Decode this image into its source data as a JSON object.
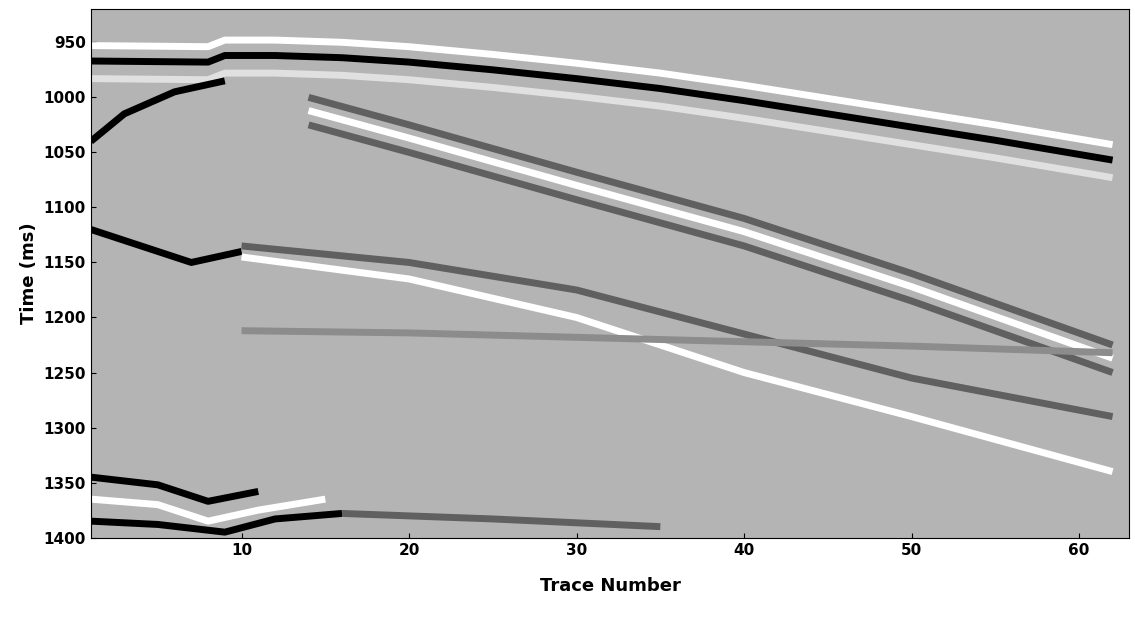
{
  "chart_data": {
    "type": "line",
    "x_label": "Trace Number",
    "y_label": "Time (ms)",
    "xlim": [
      1,
      63
    ],
    "xticks": [
      10,
      20,
      30,
      40,
      50,
      60
    ],
    "ylim": [
      1400,
      920
    ],
    "yticks": [
      950,
      1000,
      1050,
      1100,
      1150,
      1200,
      1250,
      1300,
      1350,
      1400
    ],
    "grid": false,
    "series": [
      {
        "color": "#ffffff",
        "x": [
          1,
          8,
          9,
          12,
          16,
          20,
          25,
          30,
          35,
          40,
          45,
          50,
          55,
          62
        ],
        "values": [
          953,
          954,
          948,
          948,
          950,
          954,
          961,
          969,
          978,
          989,
          1001,
          1013,
          1025,
          1043
        ]
      },
      {
        "color": "#000000",
        "x": [
          1,
          8,
          9,
          12,
          16,
          20,
          25,
          30,
          35,
          40,
          45,
          50,
          55,
          62
        ],
        "values": [
          967,
          968,
          962,
          962,
          964,
          968,
          975,
          983,
          992,
          1003,
          1015,
          1027,
          1039,
          1057
        ]
      },
      {
        "color": "#e0e0e0",
        "x": [
          1,
          8,
          9,
          12,
          16,
          20,
          25,
          30,
          35,
          40,
          45,
          50,
          55,
          62
        ],
        "values": [
          983,
          984,
          978,
          978,
          980,
          984,
          991,
          999,
          1008,
          1019,
          1031,
          1043,
          1055,
          1073
        ]
      },
      {
        "color": "#000000",
        "x": [
          1,
          3,
          6,
          9
        ],
        "values": [
          1040,
          1015,
          995,
          985
        ]
      },
      {
        "color": "#606060",
        "x": [
          14,
          20,
          30,
          40,
          50,
          62
        ],
        "values": [
          1000,
          1025,
          1068,
          1110,
          1160,
          1225
        ]
      },
      {
        "color": "#ffffff",
        "x": [
          14,
          20,
          30,
          40,
          50,
          62
        ],
        "values": [
          1012,
          1037,
          1080,
          1122,
          1172,
          1237
        ]
      },
      {
        "color": "#606060",
        "x": [
          14,
          20,
          30,
          40,
          50,
          62
        ],
        "values": [
          1025,
          1050,
          1093,
          1135,
          1185,
          1250
        ]
      },
      {
        "color": "#000000",
        "x": [
          1,
          3,
          7,
          10
        ],
        "values": [
          1120,
          1130,
          1150,
          1140
        ]
      },
      {
        "color": "#606060",
        "x": [
          10,
          20,
          30,
          40,
          45,
          50,
          62
        ],
        "values": [
          1135,
          1150,
          1175,
          1215,
          1235,
          1255,
          1290
        ]
      },
      {
        "color": "#ffffff",
        "x": [
          10,
          20,
          30,
          40,
          50,
          62
        ],
        "values": [
          1145,
          1165,
          1200,
          1250,
          1290,
          1340
        ]
      },
      {
        "color": "#8c8c8c",
        "x": [
          10,
          20,
          30,
          40,
          50,
          62
        ],
        "values": [
          1212,
          1214,
          1218,
          1222,
          1226,
          1232
        ]
      },
      {
        "color": "#000000",
        "x": [
          1,
          5,
          8,
          11
        ],
        "values": [
          1345,
          1352,
          1367,
          1358
        ]
      },
      {
        "color": "#ffffff",
        "x": [
          1,
          5,
          8,
          11,
          15
        ],
        "values": [
          1365,
          1370,
          1385,
          1375,
          1365
        ]
      },
      {
        "color": "#000000",
        "x": [
          1,
          5,
          9,
          12,
          16
        ],
        "values": [
          1385,
          1388,
          1395,
          1383,
          1378
        ]
      },
      {
        "color": "#606060",
        "x": [
          16,
          25,
          35
        ],
        "values": [
          1378,
          1383,
          1390
        ]
      }
    ]
  }
}
